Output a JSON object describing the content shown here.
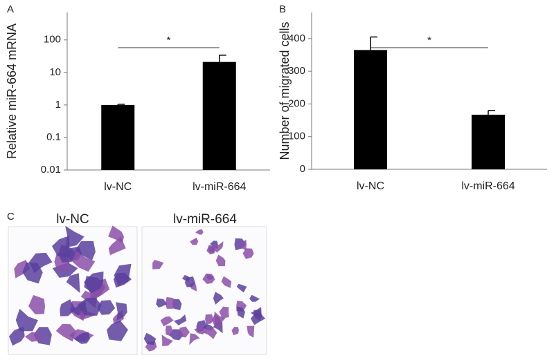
{
  "chart_data": [
    {
      "type": "bar",
      "panel_label": "A",
      "ylabel": "Relative miR-664 mRNA",
      "log_scale": true,
      "categories": [
        "lv-NC",
        "lv-miR-664"
      ],
      "values": [
        1,
        21
      ],
      "errors": [
        0.05,
        13
      ],
      "color": "#000000",
      "ylim": [
        0.01,
        700
      ],
      "yticks": [
        0.01,
        0.1,
        1,
        10,
        100
      ],
      "annotation": "*"
    },
    {
      "type": "bar",
      "panel_label": "B",
      "ylabel": "Number of migrated cells",
      "log_scale": false,
      "categories": [
        "lv-NC",
        "lv-miR-664"
      ],
      "values": [
        365,
        167
      ],
      "errors": [
        40,
        13
      ],
      "color": "#000000",
      "ylim": [
        0,
        480
      ],
      "yticks": [
        0,
        100,
        200,
        300,
        400
      ],
      "annotation": "*"
    }
  ],
  "panel_c": {
    "label": "C",
    "images": [
      "lv-NC",
      "lv-miR-664"
    ]
  }
}
